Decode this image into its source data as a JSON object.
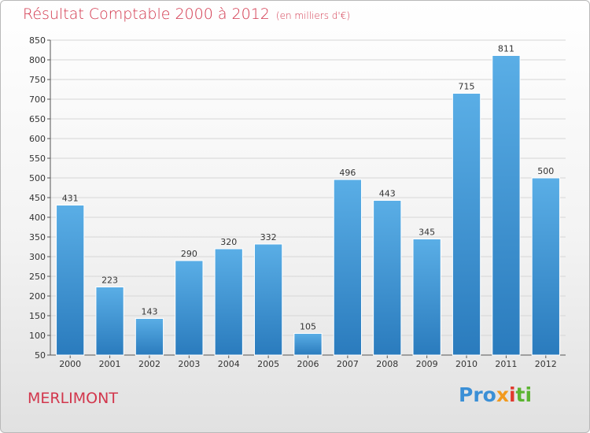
{
  "chart_data": {
    "type": "bar",
    "title": "Résultat Comptable 2000 à 2012",
    "unit_note": "(en milliers d'€)",
    "categories": [
      "2000",
      "2001",
      "2002",
      "2003",
      "2004",
      "2005",
      "2006",
      "2007",
      "2008",
      "2009",
      "2010",
      "2011",
      "2012"
    ],
    "values": [
      431,
      223,
      143,
      290,
      320,
      332,
      105,
      496,
      443,
      345,
      715,
      811,
      500
    ],
    "value_labels": [
      "431",
      "223",
      "143",
      "290",
      "320",
      "332",
      "105",
      "496",
      "443",
      "345",
      "715",
      "811",
      "500"
    ],
    "ylim": [
      50,
      850
    ],
    "yticks": [
      50,
      100,
      150,
      200,
      250,
      300,
      350,
      400,
      450,
      500,
      550,
      600,
      650,
      700,
      750,
      800,
      850
    ],
    "grid": true,
    "xlabel": "",
    "ylabel": "",
    "bar_color_top": "#5aaee6",
    "bar_color_bottom": "#2a7bbd"
  },
  "footer": {
    "commune": "MERLIMONT",
    "brand": [
      "Pro",
      "x",
      "i",
      "ti"
    ]
  },
  "colors": {
    "title": "#d2364c",
    "grid": "#d6d6d6"
  }
}
